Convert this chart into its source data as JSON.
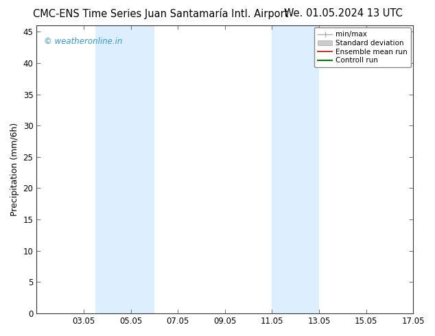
{
  "title_left": "CMC-ENS Time Series Juan Santamaría Intl. Airport",
  "title_right": "We. 01.05.2024 13 UTC",
  "ylabel": "Precipitation (mm/6h)",
  "watermark": "© weatheronline.in",
  "xmin": 1.05,
  "xmax": 17.05,
  "ymin": 0,
  "ymax": 46,
  "yticks": [
    0,
    5,
    10,
    15,
    20,
    25,
    30,
    35,
    40,
    45
  ],
  "xticks": [
    3.05,
    5.05,
    7.05,
    9.05,
    11.05,
    13.05,
    15.05,
    17.05
  ],
  "xtick_labels": [
    "03.05",
    "05.05",
    "07.05",
    "09.05",
    "11.05",
    "13.05",
    "15.05",
    "17.05"
  ],
  "shaded_bands": [
    [
      3.55,
      5.05
    ],
    [
      5.05,
      6.05
    ],
    [
      11.05,
      12.05
    ],
    [
      12.05,
      13.05
    ]
  ],
  "shade_color": "#ddeeff",
  "bg_color": "#ffffff",
  "plot_bg_color": "#ffffff",
  "legend_entries": [
    {
      "label": "min/max",
      "color": "#b0b0b0",
      "lw": 1.5,
      "type": "minmax"
    },
    {
      "label": "Standard deviation",
      "color": "#c0c0c0",
      "lw": 6,
      "type": "bar"
    },
    {
      "label": "Ensemble mean run",
      "color": "#cc0000",
      "lw": 1.2,
      "type": "line"
    },
    {
      "label": "Controll run",
      "color": "#007700",
      "lw": 1.5,
      "type": "line"
    }
  ],
  "title_fontsize": 10.5,
  "tick_fontsize": 8.5,
  "ylabel_fontsize": 9,
  "watermark_color": "#3399cc",
  "watermark_fontsize": 8.5
}
